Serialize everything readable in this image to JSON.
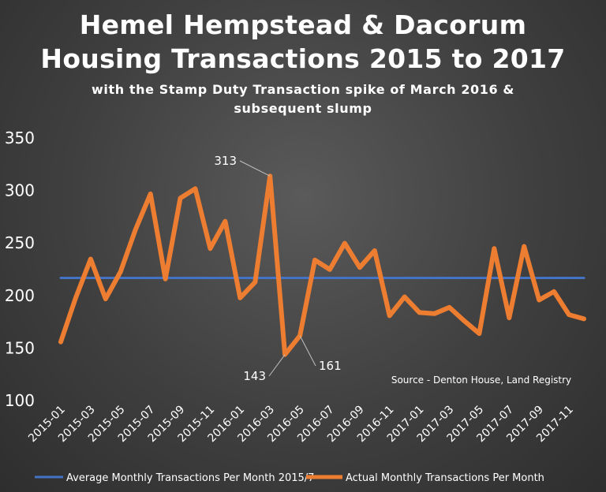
{
  "title_line1": "Hemel Hempstead & Dacorum",
  "title_line2": "Housing Transactions 2015 to 2017",
  "subtitle_line1": "with the Stamp Duty Transaction spike of March 2016 &",
  "subtitle_line2": "subsequent slump",
  "source_note": "Source - Denton House, Land Registry",
  "colors": {
    "average_line": "#4472c4",
    "actual_line": "#ed7d31",
    "text": "#ffffff"
  },
  "chart_data": {
    "type": "line",
    "title": "Hemel Hempstead & Dacorum Housing Transactions 2015 to 2017",
    "subtitle": "with the Stamp Duty Transaction spike of March 2016 & subsequent slump",
    "x": [
      "2015-01",
      "2015-02",
      "2015-03",
      "2015-04",
      "2015-05",
      "2015-06",
      "2015-07",
      "2015-08",
      "2015-09",
      "2015-10",
      "2015-11",
      "2015-12",
      "2016-01",
      "2016-02",
      "2016-03",
      "2016-04",
      "2016-05",
      "2016-06",
      "2016-07",
      "2016-08",
      "2016-09",
      "2016-10",
      "2016-11",
      "2016-12",
      "2017-01",
      "2017-02",
      "2017-03",
      "2017-04",
      "2017-05",
      "2017-06",
      "2017-07",
      "2017-08",
      "2017-09",
      "2017-10",
      "2017-11",
      "2017-12"
    ],
    "x_tick_labels": [
      "2015-01",
      "2015-03",
      "2015-05",
      "2015-07",
      "2015-09",
      "2015-11",
      "2016-01",
      "2016-03",
      "2016-05",
      "2016-07",
      "2016-09",
      "2016-11",
      "2017-01",
      "2017-03",
      "2017-05",
      "2017-07",
      "2017-09",
      "2017-11"
    ],
    "y_tick_labels": [
      "100",
      "150",
      "200",
      "250",
      "300",
      "350"
    ],
    "ylim": [
      100,
      350
    ],
    "grid": false,
    "legend_position": "bottom",
    "series": [
      {
        "name": "Average Monthly Transactions Per Month 2015/7",
        "values": [
          216,
          216,
          216,
          216,
          216,
          216,
          216,
          216,
          216,
          216,
          216,
          216,
          216,
          216,
          216,
          216,
          216,
          216,
          216,
          216,
          216,
          216,
          216,
          216,
          216,
          216,
          216,
          216,
          216,
          216,
          216,
          216,
          216,
          216,
          216,
          216
        ]
      },
      {
        "name": "Actual Monthly Transactions Per Month",
        "values": [
          155,
          197,
          234,
          196,
          222,
          262,
          296,
          215,
          292,
          301,
          244,
          270,
          197,
          212,
          313,
          143,
          161,
          233,
          224,
          249,
          226,
          242,
          180,
          198,
          183,
          182,
          188,
          175,
          163,
          244,
          178,
          246,
          195,
          203,
          181,
          177
        ]
      }
    ],
    "annotations": [
      {
        "label": "313",
        "index": 14
      },
      {
        "label": "143",
        "index": 15
      },
      {
        "label": "161",
        "index": 16
      }
    ]
  }
}
